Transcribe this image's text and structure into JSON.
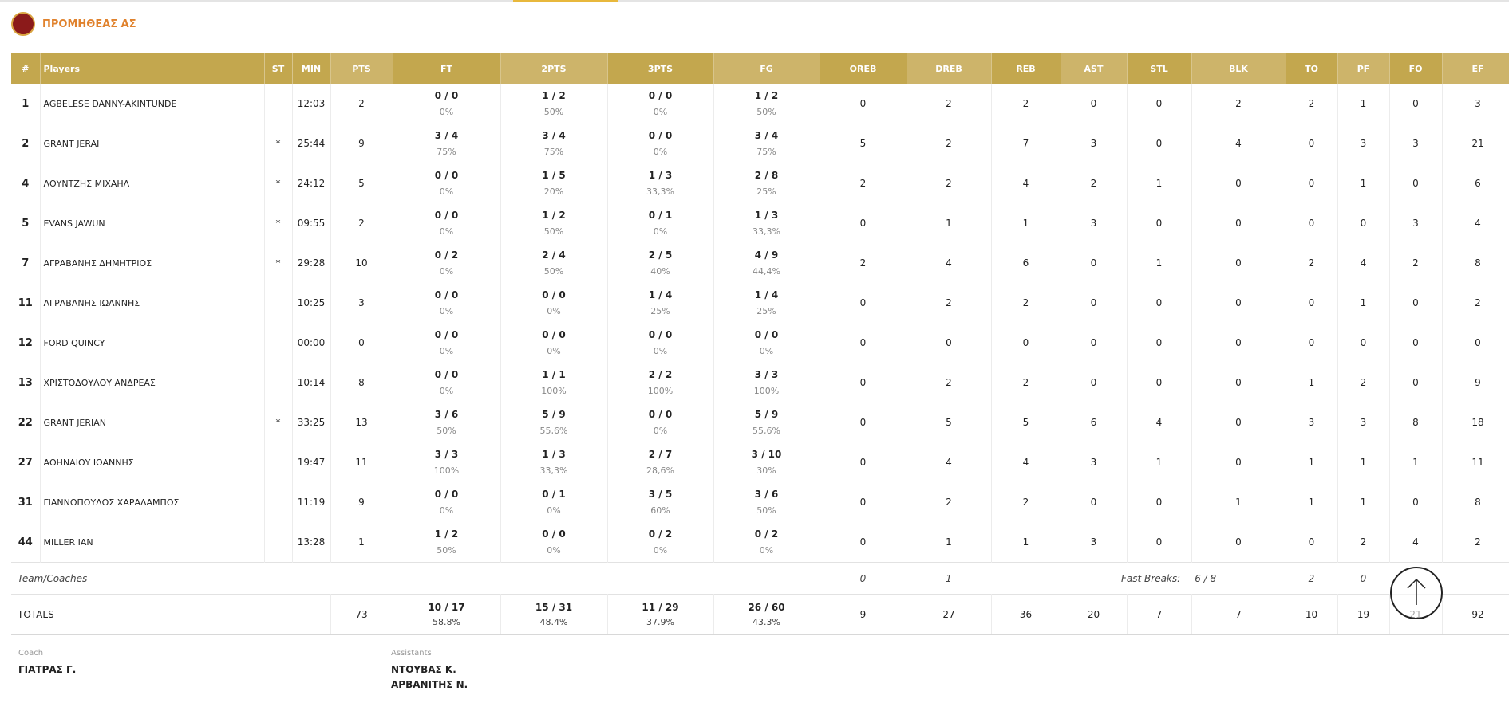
{
  "header": {
    "title": "ΠΡΟΜΗΘΕΑΣ ΑΣ"
  },
  "table": {
    "columns": [
      "#",
      "Players",
      "ST",
      "MIN",
      "PTS",
      "FT",
      "2PTS",
      "3PTS",
      "FG",
      "OREB",
      "DREB",
      "REB",
      "AST",
      "STL",
      "BLK",
      "TO",
      "PF",
      "FO",
      "EF"
    ],
    "rows": [
      [
        1,
        "AGBELESE DANNY-AKINTUNDE",
        null,
        "12:03",
        2,
        [
          "0 / 0",
          "0%"
        ],
        [
          "1 / 2",
          "50%"
        ],
        [
          "0 / 0",
          "0%"
        ],
        [
          "1 / 2",
          "50%"
        ],
        0,
        2,
        2,
        0,
        0,
        2,
        2,
        1,
        0,
        3
      ],
      [
        2,
        "GRANT JERAI",
        "*",
        "25:44",
        9,
        [
          "3 / 4",
          "75%"
        ],
        [
          "3 / 4",
          "75%"
        ],
        [
          "0 / 0",
          "0%"
        ],
        [
          "3 / 4",
          "75%"
        ],
        5,
        2,
        7,
        3,
        0,
        4,
        0,
        3,
        3,
        21
      ],
      [
        4,
        "ΛΟΥΝΤΖΗΣ ΜΙΧΑΗΛ",
        "*",
        "24:12",
        5,
        [
          "0 / 0",
          "0%"
        ],
        [
          "1 / 5",
          "20%"
        ],
        [
          "1 / 3",
          "33,3%"
        ],
        [
          "2 / 8",
          "25%"
        ],
        2,
        2,
        4,
        2,
        1,
        0,
        0,
        1,
        0,
        6
      ],
      [
        5,
        "EVANS JAWUN",
        "*",
        "09:55",
        2,
        [
          "0 / 0",
          "0%"
        ],
        [
          "1 / 2",
          "50%"
        ],
        [
          "0 / 1",
          "0%"
        ],
        [
          "1 / 3",
          "33,3%"
        ],
        0,
        1,
        1,
        3,
        0,
        0,
        0,
        0,
        3,
        4
      ],
      [
        7,
        "ΑΓΡΑΒΑΝΗΣ ΔΗΜΗΤΡΙΟΣ",
        "*",
        "29:28",
        10,
        [
          "0 / 2",
          "0%"
        ],
        [
          "2 / 4",
          "50%"
        ],
        [
          "2 / 5",
          "40%"
        ],
        [
          "4 / 9",
          "44,4%"
        ],
        2,
        4,
        6,
        0,
        1,
        0,
        2,
        4,
        2,
        8
      ],
      [
        11,
        "ΑΓΡΑΒΑΝΗΣ ΙΩΑΝΝΗΣ",
        null,
        "10:25",
        3,
        [
          "0 / 0",
          "0%"
        ],
        [
          "0 / 0",
          "0%"
        ],
        [
          "1 / 4",
          "25%"
        ],
        [
          "1 / 4",
          "25%"
        ],
        0,
        2,
        2,
        0,
        0,
        0,
        0,
        1,
        0,
        2
      ],
      [
        12,
        "FORD QUINCY",
        null,
        "00:00",
        0,
        [
          "0 / 0",
          "0%"
        ],
        [
          "0 / 0",
          "0%"
        ],
        [
          "0 / 0",
          "0%"
        ],
        [
          "0 / 0",
          "0%"
        ],
        0,
        0,
        0,
        0,
        0,
        0,
        0,
        0,
        0,
        0
      ],
      [
        13,
        "ΧΡΙΣΤΟΔΟΥΛΟΥ ΑΝΔΡΕΑΣ",
        null,
        "10:14",
        8,
        [
          "0 / 0",
          "0%"
        ],
        [
          "1 / 1",
          "100%"
        ],
        [
          "2 / 2",
          "100%"
        ],
        [
          "3 / 3",
          "100%"
        ],
        0,
        2,
        2,
        0,
        0,
        0,
        1,
        2,
        0,
        9
      ],
      [
        22,
        "GRANT JERIAN",
        "*",
        "33:25",
        13,
        [
          "3 / 6",
          "50%"
        ],
        [
          "5 / 9",
          "55,6%"
        ],
        [
          "0 / 0",
          "0%"
        ],
        [
          "5 / 9",
          "55,6%"
        ],
        0,
        5,
        5,
        6,
        4,
        0,
        3,
        3,
        8,
        18
      ],
      [
        27,
        "ΑΘΗΝΑΙΟΥ ΙΩΑΝΝΗΣ",
        null,
        "19:47",
        11,
        [
          "3 / 3",
          "100%"
        ],
        [
          "1 / 3",
          "33,3%"
        ],
        [
          "2 / 7",
          "28,6%"
        ],
        [
          "3 / 10",
          "30%"
        ],
        0,
        4,
        4,
        3,
        1,
        0,
        1,
        1,
        1,
        11
      ],
      [
        31,
        "ΓΙΑΝΝΟΠΟΥΛΟΣ ΧΑΡΑΛΑΜΠΟΣ",
        null,
        "11:19",
        9,
        [
          "0 / 0",
          "0%"
        ],
        [
          "0 / 1",
          "0%"
        ],
        [
          "3 / 5",
          "60%"
        ],
        [
          "3 / 6",
          "50%"
        ],
        0,
        2,
        2,
        0,
        0,
        1,
        1,
        1,
        0,
        8
      ],
      [
        44,
        "MILLER IAN",
        null,
        "13:28",
        1,
        [
          "1 / 2",
          "50%"
        ],
        [
          "0 / 0",
          "0%"
        ],
        [
          "0 / 2",
          "0%"
        ],
        [
          "0 / 2",
          "0%"
        ],
        0,
        1,
        1,
        3,
        0,
        0,
        0,
        2,
        4,
        2
      ]
    ],
    "team": {
      "label": "Team/Coaches",
      "oreb": 0,
      "dreb": 1,
      "fast_breaks_label": "Fast Breaks:",
      "fast_breaks": "6 / 8",
      "to": 2,
      "pf": 0
    },
    "totals": {
      "label": "TOTALS",
      "cells": [
        73,
        [
          "10 / 17",
          "58.8%"
        ],
        [
          "15 / 31",
          "48.4%"
        ],
        [
          "11 / 29",
          "37.9%"
        ],
        [
          "26 / 60",
          "43.3%"
        ],
        9,
        27,
        36,
        20,
        7,
        7,
        10,
        19,
        21,
        92
      ]
    }
  },
  "staff": {
    "coach_label": "Coach",
    "coach": "ΓΙΑΤΡΑΣ Γ.",
    "assistants_label": "Assistants",
    "assistants": [
      "ΝΤΟΥΒΑΣ Κ.",
      "ΑΡΒΑΝΙΤΗΣ Ν."
    ]
  }
}
